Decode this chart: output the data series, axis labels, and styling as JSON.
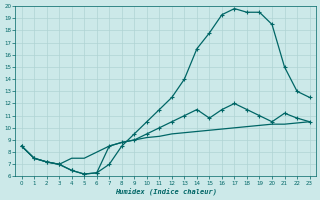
{
  "xlabel": "Humidex (Indice chaleur)",
  "background_color": "#cce9e9",
  "grid_color": "#b0d4d4",
  "line_color": "#006666",
  "xlim": [
    -0.5,
    23.5
  ],
  "ylim": [
    6,
    20
  ],
  "xticks": [
    0,
    1,
    2,
    3,
    4,
    5,
    6,
    7,
    8,
    9,
    10,
    11,
    12,
    13,
    14,
    15,
    16,
    17,
    18,
    19,
    20,
    21,
    22,
    23
  ],
  "yticks": [
    6,
    7,
    8,
    9,
    10,
    11,
    12,
    13,
    14,
    15,
    16,
    17,
    18,
    19,
    20
  ],
  "curve1_x": [
    0,
    1,
    2,
    3,
    4,
    5,
    6,
    7,
    8,
    9,
    10,
    11,
    12,
    13,
    14,
    15,
    16,
    17,
    18,
    19,
    20,
    21,
    22,
    23
  ],
  "curve1_y": [
    8.5,
    7.5,
    7.2,
    7.0,
    6.5,
    6.2,
    6.3,
    7.0,
    8.5,
    9.5,
    10.5,
    11.5,
    12.5,
    14.0,
    16.5,
    17.8,
    19.3,
    19.8,
    19.5,
    19.5,
    18.5,
    15.0,
    13.0,
    12.5
  ],
  "curve2_x": [
    0,
    1,
    2,
    3,
    4,
    5,
    6,
    7,
    8,
    9,
    10,
    11,
    12,
    13,
    14,
    15,
    16,
    17,
    18,
    19,
    20,
    21,
    22,
    23
  ],
  "curve2_y": [
    8.5,
    7.5,
    7.2,
    7.0,
    6.5,
    6.2,
    6.3,
    8.5,
    8.8,
    9.0,
    9.5,
    10.0,
    10.5,
    11.0,
    11.5,
    10.8,
    11.5,
    12.0,
    11.5,
    11.0,
    10.5,
    11.2,
    10.8,
    10.5
  ],
  "curve3_x": [
    0,
    1,
    2,
    3,
    4,
    5,
    6,
    7,
    8,
    9,
    10,
    11,
    12,
    13,
    14,
    15,
    16,
    17,
    18,
    19,
    20,
    21,
    22,
    23
  ],
  "curve3_y": [
    8.5,
    7.5,
    7.2,
    7.0,
    7.5,
    7.5,
    8.0,
    8.5,
    8.8,
    9.0,
    9.2,
    9.3,
    9.5,
    9.6,
    9.7,
    9.8,
    9.9,
    10.0,
    10.1,
    10.2,
    10.3,
    10.3,
    10.4,
    10.5
  ]
}
